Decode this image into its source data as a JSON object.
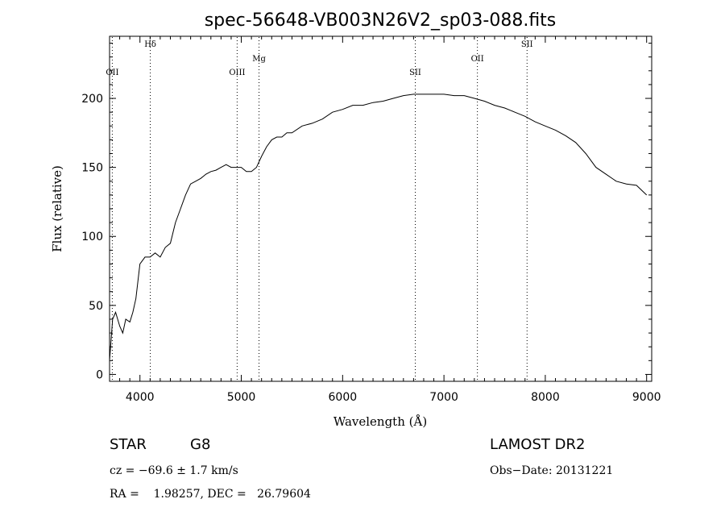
{
  "chart_data": {
    "type": "line",
    "title": "spec-56648-VB003N26V2_sp03-088.fits",
    "xlabel": "Wavelength (Å)",
    "ylabel": "Flux (relative)",
    "xlim": [
      3700,
      9050
    ],
    "ylim": [
      -5,
      245
    ],
    "x_ticks": [
      4000,
      5000,
      6000,
      7000,
      8000,
      9000
    ],
    "y_ticks": [
      0,
      50,
      100,
      150,
      200
    ],
    "grid": false,
    "series": [
      {
        "x": [
          3700,
          3730,
          3760,
          3800,
          3830,
          3860,
          3900,
          3930,
          3960,
          4000,
          4050,
          4100,
          4150,
          4200,
          4250,
          4300,
          4350,
          4400,
          4450,
          4500,
          4550,
          4600,
          4650,
          4700,
          4750,
          4800,
          4850,
          4900,
          4950,
          5000,
          5050,
          5100,
          5150,
          5200,
          5250,
          5300,
          5350,
          5400,
          5450,
          5500,
          5600,
          5700,
          5800,
          5900,
          6000,
          6100,
          6200,
          6300,
          6400,
          6500,
          6600,
          6700,
          6800,
          6900,
          7000,
          7100,
          7200,
          7300,
          7400,
          7500,
          7600,
          7700,
          7800,
          7900,
          8000,
          8100,
          8200,
          8300,
          8400,
          8500,
          8600,
          8700,
          8800,
          8900,
          9000
        ],
        "y": [
          10,
          40,
          45,
          35,
          30,
          40,
          38,
          45,
          55,
          80,
          85,
          85,
          88,
          85,
          92,
          95,
          110,
          120,
          130,
          138,
          140,
          142,
          145,
          147,
          148,
          150,
          152,
          150,
          150,
          150,
          147,
          147,
          150,
          158,
          165,
          170,
          172,
          172,
          175,
          175,
          180,
          182,
          185,
          190,
          192,
          195,
          195,
          197,
          198,
          200,
          202,
          203,
          203,
          203,
          203,
          202,
          202,
          200,
          198,
          195,
          193,
          190,
          187,
          183,
          180,
          177,
          173,
          168,
          160,
          150,
          145,
          140,
          138,
          137,
          130
        ]
      }
    ],
    "emission_lines": [
      {
        "name": "OII",
        "x": 3727
      },
      {
        "name": "Hδ",
        "x": 4102
      },
      {
        "name": "OIII",
        "x": 4959
      },
      {
        "name": "Mg",
        "x": 5175
      },
      {
        "name": "SII",
        "x": 6717
      },
      {
        "name": "OII",
        "x": 7330
      },
      {
        "name": "SII",
        "x": 7820
      }
    ]
  },
  "footer": {
    "object_class": "STAR",
    "subclass": "G8",
    "catalog": "LAMOST DR2",
    "cz_text": "cz = −69.6 ± 1.7 km/s",
    "obs_date_text": "Obs−Date: 20131221",
    "radec_text": "RA =    1.98257, DEC =   26.79604"
  }
}
